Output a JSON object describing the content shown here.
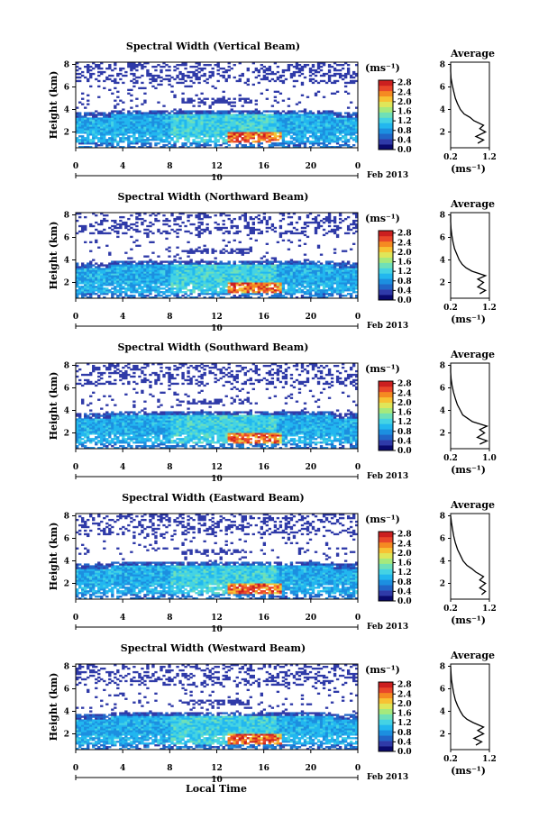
{
  "figure": {
    "xlabel": "Local Time",
    "ylabel": "Height (km)",
    "date_label": "Feb 2013",
    "day_label": "10",
    "colorbar_unit": "(ms⁻¹)",
    "avg_title": "Average",
    "avg_unit": "(ms⁻¹)",
    "colormap": [
      "#0a0a6e",
      "#2f3aa8",
      "#2166c8",
      "#1c8fe0",
      "#22b7ef",
      "#44d3e4",
      "#6fe0b8",
      "#a6e97c",
      "#dfe659",
      "#f7c233",
      "#f58a22",
      "#e9472a",
      "#cc1f1f"
    ]
  },
  "chart_data": [
    {
      "type": "heatmap",
      "title": "Spectral Width (Vertical Beam)",
      "x_ticks": [
        "0",
        "4",
        "8",
        "12",
        "16",
        "20",
        "0"
      ],
      "x_range": [
        0,
        24
      ],
      "y_ticks": [
        "2",
        "4",
        "6",
        "8"
      ],
      "y_range": [
        0.6,
        8.2
      ],
      "colorbar_ticks": [
        "0.0",
        "0.4",
        "0.8",
        "1.2",
        "1.6",
        "2.0",
        "2.4",
        "2.8"
      ],
      "colorbar_range": [
        0.0,
        2.9
      ],
      "average": {
        "title": "Average",
        "x_ticks": [
          "0.2",
          "1.2"
        ],
        "x_range": [
          0.2,
          1.2
        ],
        "y_ticks": [
          "2",
          "4",
          "6",
          "8"
        ],
        "y_range": [
          0.6,
          8.2
        ],
        "profile": [
          [
            1.0,
            0.9
          ],
          [
            1.3,
            1.05
          ],
          [
            1.6,
            0.85
          ],
          [
            2.0,
            1.1
          ],
          [
            2.3,
            0.95
          ],
          [
            2.6,
            1.05
          ],
          [
            3.0,
            0.8
          ],
          [
            3.3,
            0.7
          ],
          [
            3.6,
            0.55
          ],
          [
            4.0,
            0.45
          ],
          [
            4.5,
            0.38
          ],
          [
            5.0,
            0.32
          ],
          [
            5.6,
            0.28
          ],
          [
            6.2,
            0.24
          ],
          [
            6.8,
            0.21
          ],
          [
            7.4,
            0.2
          ],
          [
            8.0,
            0.2
          ]
        ]
      }
    },
    {
      "type": "heatmap",
      "title": "Spectral Width (Northward Beam)",
      "x_ticks": [
        "0",
        "4",
        "8",
        "12",
        "16",
        "20",
        "0"
      ],
      "x_range": [
        0,
        24
      ],
      "y_ticks": [
        "2",
        "4",
        "6",
        "8"
      ],
      "y_range": [
        0.6,
        8.2
      ],
      "colorbar_ticks": [
        "0.0",
        "0.4",
        "0.8",
        "1.2",
        "1.6",
        "2.0",
        "2.4",
        "2.8"
      ],
      "colorbar_range": [
        0.0,
        2.9
      ],
      "average": {
        "title": "Average",
        "x_ticks": [
          "0.2",
          "1.2"
        ],
        "x_range": [
          0.2,
          1.2
        ],
        "y_ticks": [
          "2",
          "4",
          "6",
          "8"
        ],
        "y_range": [
          0.6,
          8.2
        ],
        "profile": [
          [
            1.0,
            0.95
          ],
          [
            1.3,
            1.1
          ],
          [
            1.6,
            0.9
          ],
          [
            2.0,
            1.05
          ],
          [
            2.3,
            0.9
          ],
          [
            2.6,
            1.1
          ],
          [
            3.0,
            0.75
          ],
          [
            3.3,
            0.6
          ],
          [
            3.6,
            0.5
          ],
          [
            4.0,
            0.42
          ],
          [
            4.5,
            0.36
          ],
          [
            5.0,
            0.3
          ],
          [
            5.6,
            0.26
          ],
          [
            6.2,
            0.23
          ],
          [
            6.8,
            0.21
          ],
          [
            7.4,
            0.2
          ],
          [
            8.0,
            0.2
          ]
        ]
      }
    },
    {
      "type": "heatmap",
      "title": "Spectral Width (Southward Beam)",
      "x_ticks": [
        "0",
        "4",
        "8",
        "12",
        "16",
        "20",
        "0"
      ],
      "x_range": [
        0,
        24
      ],
      "y_ticks": [
        "2",
        "4",
        "6",
        "8"
      ],
      "y_range": [
        0.6,
        8.2
      ],
      "colorbar_ticks": [
        "0.0",
        "0.4",
        "0.8",
        "1.2",
        "1.6",
        "2.0",
        "2.4",
        "2.8"
      ],
      "colorbar_range": [
        0.0,
        2.9
      ],
      "average": {
        "title": "Average",
        "x_ticks": [
          "0.2",
          "1.0"
        ],
        "x_range": [
          0.2,
          1.0
        ],
        "y_ticks": [
          "2",
          "4",
          "6",
          "8"
        ],
        "y_range": [
          0.6,
          8.2
        ],
        "profile": [
          [
            1.0,
            0.8
          ],
          [
            1.3,
            0.95
          ],
          [
            1.6,
            0.75
          ],
          [
            2.0,
            0.9
          ],
          [
            2.3,
            0.8
          ],
          [
            2.6,
            0.95
          ],
          [
            3.0,
            0.65
          ],
          [
            3.3,
            0.55
          ],
          [
            3.6,
            0.45
          ],
          [
            4.0,
            0.4
          ],
          [
            4.5,
            0.34
          ],
          [
            5.0,
            0.3
          ],
          [
            5.6,
            0.26
          ],
          [
            6.2,
            0.23
          ],
          [
            6.8,
            0.21
          ],
          [
            7.4,
            0.2
          ],
          [
            8.0,
            0.2
          ]
        ]
      }
    },
    {
      "type": "heatmap",
      "title": "Spectral Width (Eastward Beam)",
      "x_ticks": [
        "0",
        "4",
        "8",
        "12",
        "16",
        "20",
        "0"
      ],
      "x_range": [
        0,
        24
      ],
      "y_ticks": [
        "2",
        "4",
        "6",
        "8"
      ],
      "y_range": [
        0.6,
        8.2
      ],
      "colorbar_ticks": [
        "0.0",
        "0.4",
        "0.8",
        "1.2",
        "1.6",
        "2.0",
        "2.4",
        "2.8"
      ],
      "colorbar_range": [
        0.0,
        2.9
      ],
      "average": {
        "title": "Average",
        "x_ticks": [
          "0.2",
          "1.2"
        ],
        "x_range": [
          0.2,
          1.2
        ],
        "y_ticks": [
          "2",
          "4",
          "6",
          "8"
        ],
        "y_range": [
          0.6,
          8.2
        ],
        "profile": [
          [
            1.0,
            1.0
          ],
          [
            1.3,
            1.1
          ],
          [
            1.6,
            0.95
          ],
          [
            2.0,
            1.1
          ],
          [
            2.3,
            0.95
          ],
          [
            2.6,
            1.05
          ],
          [
            3.0,
            0.85
          ],
          [
            3.3,
            0.75
          ],
          [
            3.6,
            0.62
          ],
          [
            4.0,
            0.52
          ],
          [
            4.5,
            0.45
          ],
          [
            5.0,
            0.38
          ],
          [
            5.6,
            0.32
          ],
          [
            6.2,
            0.28
          ],
          [
            6.8,
            0.25
          ],
          [
            7.4,
            0.22
          ],
          [
            8.0,
            0.2
          ]
        ]
      }
    },
    {
      "type": "heatmap",
      "title": "Spectral Width (Westward Beam)",
      "x_ticks": [
        "0",
        "4",
        "8",
        "12",
        "16",
        "20",
        "0"
      ],
      "x_range": [
        0,
        24
      ],
      "y_ticks": [
        "2",
        "4",
        "6",
        "8"
      ],
      "y_range": [
        0.6,
        8.2
      ],
      "colorbar_ticks": [
        "0.0",
        "0.4",
        "0.8",
        "1.2",
        "1.6",
        "2.0",
        "2.4",
        "2.8"
      ],
      "colorbar_range": [
        0.0,
        2.9
      ],
      "average": {
        "title": "Average",
        "x_ticks": [
          "0.2",
          "1.2"
        ],
        "x_range": [
          0.2,
          1.2
        ],
        "y_ticks": [
          "2",
          "4",
          "6",
          "8"
        ],
        "y_range": [
          0.6,
          8.2
        ],
        "profile": [
          [
            1.0,
            0.85
          ],
          [
            1.3,
            1.0
          ],
          [
            1.6,
            0.8
          ],
          [
            2.0,
            1.05
          ],
          [
            2.3,
            0.9
          ],
          [
            2.6,
            1.05
          ],
          [
            3.0,
            0.78
          ],
          [
            3.3,
            0.62
          ],
          [
            3.6,
            0.52
          ],
          [
            4.0,
            0.45
          ],
          [
            4.5,
            0.38
          ],
          [
            5.0,
            0.32
          ],
          [
            5.6,
            0.28
          ],
          [
            6.2,
            0.25
          ],
          [
            6.8,
            0.22
          ],
          [
            7.4,
            0.21
          ],
          [
            8.0,
            0.2
          ]
        ]
      }
    }
  ]
}
